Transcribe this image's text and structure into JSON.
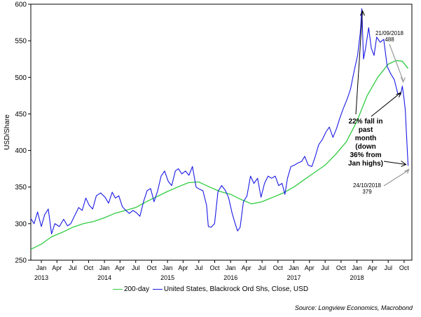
{
  "chart_data": {
    "type": "line",
    "title": "",
    "xlabel": "",
    "ylabel": "USD/Share",
    "ylim": [
      250,
      600
    ],
    "yticks": [
      "250",
      "300",
      "350",
      "400",
      "450",
      "500",
      "550",
      "600"
    ],
    "xlim": [
      "2012-11-01",
      "2018-11-15"
    ],
    "month_ticks": [
      "Jan",
      "Apr",
      "Jul",
      "Oct",
      "Jan",
      "Apr",
      "Jul",
      "Oct",
      "Jan",
      "Apr",
      "Jul",
      "Oct",
      "Jan",
      "Apr",
      "Jul",
      "Oct",
      "Jan",
      "Apr",
      "Jul",
      "Oct",
      "Jan",
      "Apr",
      "Jul",
      "Oct"
    ],
    "year_ticks": [
      "2013",
      "2014",
      "2015",
      "2016",
      "2017",
      "2018"
    ],
    "grid": false,
    "legend_position": "bottom",
    "series": [
      {
        "name": "200-day",
        "color": "#2ecc40",
        "points": [
          [
            "2012-11-01",
            265
          ],
          [
            "2013-01-01",
            272
          ],
          [
            "2013-03-01",
            282
          ],
          [
            "2013-05-01",
            288
          ],
          [
            "2013-07-01",
            295
          ],
          [
            "2013-09-01",
            300
          ],
          [
            "2013-11-01",
            303
          ],
          [
            "2014-01-01",
            308
          ],
          [
            "2014-03-01",
            314
          ],
          [
            "2014-05-01",
            318
          ],
          [
            "2014-07-01",
            322
          ],
          [
            "2014-09-01",
            330
          ],
          [
            "2014-11-01",
            337
          ],
          [
            "2015-01-01",
            344
          ],
          [
            "2015-03-01",
            350
          ],
          [
            "2015-05-01",
            356
          ],
          [
            "2015-07-01",
            357
          ],
          [
            "2015-09-01",
            350
          ],
          [
            "2015-11-01",
            344
          ],
          [
            "2016-01-01",
            340
          ],
          [
            "2016-03-01",
            333
          ],
          [
            "2016-05-01",
            327
          ],
          [
            "2016-07-01",
            330
          ],
          [
            "2016-09-01",
            336
          ],
          [
            "2016-11-01",
            342
          ],
          [
            "2017-01-01",
            350
          ],
          [
            "2017-03-01",
            360
          ],
          [
            "2017-05-01",
            370
          ],
          [
            "2017-07-01",
            380
          ],
          [
            "2017-09-01",
            395
          ],
          [
            "2017-11-01",
            412
          ],
          [
            "2018-01-01",
            440
          ],
          [
            "2018-03-01",
            475
          ],
          [
            "2018-05-01",
            500
          ],
          [
            "2018-07-01",
            518
          ],
          [
            "2018-08-15",
            523
          ],
          [
            "2018-09-21",
            522
          ],
          [
            "2018-10-24",
            512
          ]
        ]
      },
      {
        "name": "United States, Blackrock Ord Shs, Close, USD",
        "color": "#1a1ae6",
        "points": [
          [
            "2012-11-01",
            307
          ],
          [
            "2012-11-20",
            300
          ],
          [
            "2012-12-10",
            316
          ],
          [
            "2013-01-01",
            296
          ],
          [
            "2013-01-20",
            312
          ],
          [
            "2013-02-10",
            320
          ],
          [
            "2013-03-01",
            286
          ],
          [
            "2013-03-20",
            300
          ],
          [
            "2013-04-15",
            296
          ],
          [
            "2013-05-10",
            306
          ],
          [
            "2013-06-01",
            297
          ],
          [
            "2013-06-20",
            300
          ],
          [
            "2013-07-15",
            312
          ],
          [
            "2013-08-05",
            322
          ],
          [
            "2013-08-25",
            318
          ],
          [
            "2013-09-15",
            335
          ],
          [
            "2013-10-05",
            325
          ],
          [
            "2013-10-25",
            320
          ],
          [
            "2013-11-15",
            338
          ],
          [
            "2013-12-10",
            342
          ],
          [
            "2014-01-05",
            336
          ],
          [
            "2014-01-25",
            328
          ],
          [
            "2014-02-15",
            343
          ],
          [
            "2014-03-05",
            335
          ],
          [
            "2014-03-25",
            338
          ],
          [
            "2014-04-15",
            323
          ],
          [
            "2014-05-05",
            318
          ],
          [
            "2014-05-25",
            314
          ],
          [
            "2014-06-15",
            318
          ],
          [
            "2014-07-05",
            315
          ],
          [
            "2014-07-25",
            310
          ],
          [
            "2014-08-15",
            330
          ],
          [
            "2014-09-05",
            345
          ],
          [
            "2014-09-25",
            348
          ],
          [
            "2014-10-15",
            330
          ],
          [
            "2014-11-05",
            345
          ],
          [
            "2014-11-25",
            365
          ],
          [
            "2014-12-15",
            372
          ],
          [
            "2015-01-05",
            358
          ],
          [
            "2015-01-25",
            352
          ],
          [
            "2015-02-15",
            372
          ],
          [
            "2015-03-05",
            375
          ],
          [
            "2015-03-25",
            368
          ],
          [
            "2015-04-15",
            372
          ],
          [
            "2015-05-05",
            366
          ],
          [
            "2015-05-25",
            378
          ],
          [
            "2015-06-15",
            350
          ],
          [
            "2015-07-05",
            347
          ],
          [
            "2015-07-25",
            345
          ],
          [
            "2015-08-15",
            325
          ],
          [
            "2015-08-25",
            296
          ],
          [
            "2015-09-10",
            295
          ],
          [
            "2015-09-30",
            300
          ],
          [
            "2015-10-20",
            344
          ],
          [
            "2015-11-10",
            352
          ],
          [
            "2015-11-30",
            346
          ],
          [
            "2015-12-20",
            336
          ],
          [
            "2016-01-10",
            314
          ],
          [
            "2016-01-25",
            302
          ],
          [
            "2016-02-10",
            290
          ],
          [
            "2016-02-25",
            295
          ],
          [
            "2016-03-15",
            330
          ],
          [
            "2016-04-05",
            338
          ],
          [
            "2016-04-25",
            365
          ],
          [
            "2016-05-15",
            355
          ],
          [
            "2016-06-05",
            362
          ],
          [
            "2016-06-25",
            336
          ],
          [
            "2016-07-15",
            355
          ],
          [
            "2016-08-05",
            365
          ],
          [
            "2016-08-25",
            362
          ],
          [
            "2016-09-15",
            365
          ],
          [
            "2016-10-05",
            352
          ],
          [
            "2016-10-25",
            355
          ],
          [
            "2016-11-10",
            340
          ],
          [
            "2016-11-25",
            362
          ],
          [
            "2016-12-15",
            378
          ],
          [
            "2017-01-05",
            380
          ],
          [
            "2017-01-25",
            383
          ],
          [
            "2017-02-15",
            385
          ],
          [
            "2017-03-05",
            392
          ],
          [
            "2017-03-25",
            380
          ],
          [
            "2017-04-15",
            378
          ],
          [
            "2017-05-05",
            392
          ],
          [
            "2017-05-25",
            408
          ],
          [
            "2017-06-15",
            415
          ],
          [
            "2017-07-05",
            425
          ],
          [
            "2017-07-25",
            432
          ],
          [
            "2017-08-15",
            418
          ],
          [
            "2017-09-05",
            430
          ],
          [
            "2017-09-25",
            445
          ],
          [
            "2017-10-15",
            458
          ],
          [
            "2017-11-05",
            470
          ],
          [
            "2017-11-25",
            484
          ],
          [
            "2017-12-15",
            508
          ],
          [
            "2018-01-05",
            530
          ],
          [
            "2018-01-20",
            560
          ],
          [
            "2018-01-29",
            594
          ],
          [
            "2018-02-08",
            525
          ],
          [
            "2018-02-20",
            540
          ],
          [
            "2018-03-10",
            568
          ],
          [
            "2018-03-25",
            540
          ],
          [
            "2018-04-10",
            530
          ],
          [
            "2018-04-25",
            555
          ],
          [
            "2018-05-15",
            548
          ],
          [
            "2018-06-05",
            552
          ],
          [
            "2018-06-25",
            515
          ],
          [
            "2018-07-15",
            505
          ],
          [
            "2018-08-05",
            497
          ],
          [
            "2018-08-25",
            478
          ],
          [
            "2018-09-10",
            476
          ],
          [
            "2018-09-21",
            488
          ],
          [
            "2018-10-01",
            470
          ],
          [
            "2018-10-08",
            455
          ],
          [
            "2018-10-15",
            420
          ],
          [
            "2018-10-24",
            379
          ]
        ]
      }
    ],
    "annotations": [
      {
        "lines": [
          "21/09/2018",
          "488"
        ],
        "date": "2018-09-21",
        "value": 488
      },
      {
        "lines": [
          "24/10/2018",
          "379"
        ],
        "date": "2018-10-24",
        "value": 379
      },
      {
        "lines": [
          "22% fall in",
          "past",
          "month",
          "(down",
          "36% from",
          "Jan highs)"
        ]
      }
    ]
  },
  "legend": {
    "ma_label": "200-day",
    "price_label": "United States, Blackrock Ord Shs, Close, USD"
  },
  "source": "Source: Longview Economics, Macrobond"
}
